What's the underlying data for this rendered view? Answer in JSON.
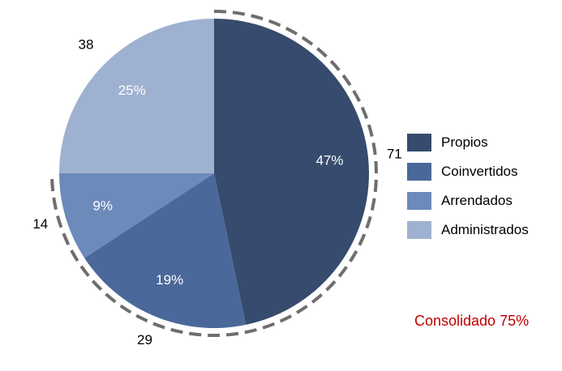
{
  "chart_data": {
    "type": "pie",
    "title": "",
    "categories": [
      "Propios",
      "Coinvertidos",
      "Arrendados",
      "Administrados"
    ],
    "values": [
      71,
      29,
      14,
      38
    ],
    "percent_labels": [
      "47%",
      "19%",
      "9%",
      "25%"
    ],
    "colors": [
      "#364b6d",
      "#4a6899",
      "#6c8aba",
      "#9fb1d0"
    ],
    "legend_position": "right",
    "start_angle_deg": 0,
    "direction": "clockwise",
    "highlight_arc": {
      "description": "dashed arc around consolidated slices",
      "categories": [
        "Propios",
        "Coinvertidos",
        "Arrendados"
      ],
      "color": "#6e6e6e"
    }
  },
  "note": {
    "text": "Consolidado 75%",
    "color": "#c00000"
  }
}
